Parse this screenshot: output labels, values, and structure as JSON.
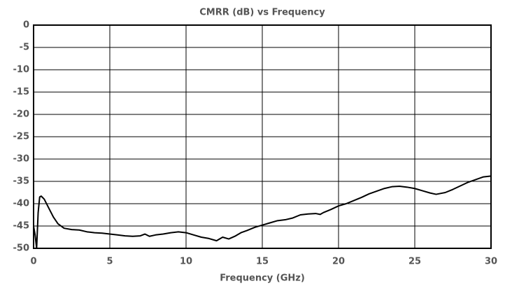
{
  "chart_data": {
    "type": "line",
    "title": "CMRR (dB) vs Frequency",
    "x_label": "Frequency (GHz)",
    "x": [
      0,
      0.1,
      0.2,
      0.3,
      0.4,
      0.5,
      0.7,
      1.0,
      1.3,
      1.6,
      2.0,
      2.5,
      3.0,
      3.5,
      4.0,
      4.5,
      5.0,
      5.5,
      6.0,
      6.5,
      7.0,
      7.3,
      7.6,
      8.0,
      8.5,
      9.0,
      9.5,
      10.0,
      10.5,
      11.0,
      11.5,
      12.0,
      12.4,
      12.8,
      13.2,
      13.6,
      14.0,
      14.5,
      15.0,
      15.5,
      16.0,
      16.5,
      17.0,
      17.5,
      18.0,
      18.5,
      18.8,
      19.0,
      19.5,
      20.0,
      20.5,
      21.0,
      21.5,
      22.0,
      22.5,
      23.0,
      23.5,
      24.0,
      24.5,
      25.0,
      25.5,
      26.0,
      26.4,
      27.0,
      27.5,
      28.0,
      28.5,
      29.0,
      29.5,
      30.0
    ],
    "series": [
      {
        "color": "#000000",
        "values": [
          -45,
          -47,
          -50,
          -42,
          -38.5,
          -38.3,
          -39,
          -41,
          -43,
          -44.5,
          -45.5,
          -45.8,
          -45.9,
          -46.3,
          -46.5,
          -46.6,
          -46.8,
          -47.0,
          -47.2,
          -47.3,
          -47.2,
          -46.8,
          -47.3,
          -47.0,
          -46.8,
          -46.5,
          -46.3,
          -46.5,
          -47.0,
          -47.5,
          -47.8,
          -48.3,
          -47.5,
          -47.9,
          -47.3,
          -46.5,
          -46.0,
          -45.3,
          -44.8,
          -44.3,
          -43.8,
          -43.6,
          -43.2,
          -42.5,
          -42.3,
          -42.2,
          -42.4,
          -42.0,
          -41.3,
          -40.5,
          -40.0,
          -39.3,
          -38.6,
          -37.8,
          -37.2,
          -36.6,
          -36.2,
          -36.1,
          -36.3,
          -36.6,
          -37.1,
          -37.6,
          -37.9,
          -37.5,
          -36.8,
          -36.0,
          -35.2,
          -34.6,
          -34.0,
          -33.8
        ]
      }
    ],
    "xlim": [
      0,
      30
    ],
    "xticks": [
      0,
      5,
      10,
      15,
      20,
      25,
      30
    ],
    "ylim": [
      -50,
      0
    ],
    "yticks": [
      0,
      -5,
      -10,
      -15,
      -20,
      -25,
      -30,
      -35,
      -40,
      -45,
      -50
    ],
    "grid": true
  }
}
